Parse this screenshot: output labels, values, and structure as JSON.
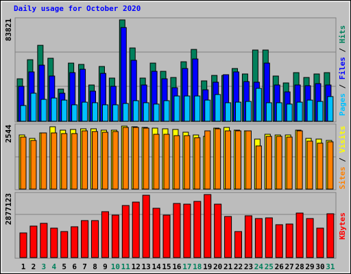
{
  "chart_data": [
    {
      "type": "bar",
      "title": "Daily usage for October 2020",
      "title_color": "#0000ff",
      "ylim": [
        0,
        83821
      ],
      "yticks": [
        83821
      ],
      "label_separator": " / ",
      "series": [
        {
          "name": "Hits",
          "color": "#00805c",
          "values": [
            35100,
            50900,
            62800,
            52100,
            26600,
            48100,
            47000,
            30000,
            45300,
            35700,
            83821,
            60600,
            35700,
            48100,
            41300,
            36200,
            49200,
            59400,
            33400,
            37900,
            37900,
            43600,
            39100,
            58900,
            58900,
            37400,
            31700,
            40200,
            36200,
            39100,
            40200
          ]
        },
        {
          "name": "Files",
          "color": "#0000ff",
          "values": [
            28900,
            40800,
            46400,
            37400,
            23200,
            40200,
            43000,
            24900,
            39600,
            28900,
            77500,
            50400,
            30000,
            41300,
            35100,
            27700,
            43600,
            51500,
            26000,
            32300,
            38500,
            40800,
            32800,
            32300,
            48100,
            30000,
            24300,
            30000,
            29400,
            31100,
            30000
          ]
        },
        {
          "name": "Pages",
          "color": "#00c0ff",
          "values": [
            13000,
            23200,
            18100,
            19200,
            17500,
            13600,
            15800,
            15300,
            13600,
            13600,
            14700,
            17000,
            15300,
            14200,
            17000,
            20900,
            20900,
            20900,
            17500,
            22100,
            15300,
            15800,
            16400,
            27200,
            15300,
            15300,
            14200,
            15800,
            17500,
            16400,
            20400
          ]
        }
      ]
    },
    {
      "type": "bar",
      "ylim": [
        0,
        2544
      ],
      "yticks": [
        2544
      ],
      "label_separator": " / ",
      "series": [
        {
          "name": "Visits",
          "color": "#ffff00",
          "values": [
            2184,
            2046,
            2267,
            2516,
            2378,
            2406,
            2433,
            2433,
            2378,
            2378,
            2544,
            2516,
            2489,
            2461,
            2433,
            2406,
            2295,
            2184,
            2129,
            2461,
            2489,
            2378,
            2350,
            2018,
            2212,
            2184,
            2184,
            2378,
            2046,
            2018,
            1963
          ]
        },
        {
          "name": "Sites",
          "color": "#ff8000",
          "values": [
            2101,
            1963,
            2267,
            2267,
            2240,
            2240,
            2350,
            2323,
            2295,
            2323,
            2489,
            2489,
            2461,
            2212,
            2212,
            2157,
            2157,
            2074,
            2350,
            2433,
            2350,
            2350,
            2350,
            1742,
            2129,
            2129,
            2101,
            2350,
            1936,
            1853,
            1908
          ]
        }
      ]
    },
    {
      "type": "bar",
      "ylim": [
        0,
        2877123
      ],
      "yticks": [
        2877123
      ],
      "categories": [
        "1",
        "2",
        "3",
        "4",
        "5",
        "6",
        "7",
        "8",
        "9",
        "10",
        "11",
        "12",
        "13",
        "14",
        "15",
        "16",
        "17",
        "18",
        "19",
        "20",
        "21",
        "22",
        "23",
        "24",
        "25",
        "26",
        "27",
        "28",
        "29",
        "30",
        "31"
      ],
      "category_colors": [
        "#000000",
        "#000000",
        "#00805c",
        "#00805c",
        "#000000",
        "#000000",
        "#000000",
        "#000000",
        "#000000",
        "#00805c",
        "#00805c",
        "#000000",
        "#000000",
        "#000000",
        "#000000",
        "#000000",
        "#00805c",
        "#00805c",
        "#000000",
        "#000000",
        "#000000",
        "#000000",
        "#000000",
        "#00805c",
        "#00805c",
        "#000000",
        "#000000",
        "#000000",
        "#000000",
        "#000000",
        "#00805c"
      ],
      "series": [
        {
          "name": "KBytes",
          "color": "#ff0000",
          "values": [
            1125800,
            1438600,
            1563700,
            1344700,
            1188400,
            1407300,
            1688700,
            1688700,
            2095300,
            1938900,
            2376700,
            2533100,
            2845800,
            2251700,
            1938900,
            2470600,
            2439300,
            2564400,
            2877123,
            2439300,
            1876400,
            1188400,
            1907700,
            1782600,
            1813800,
            1501100,
            1532400,
            2032700,
            1782600,
            1344700,
            2001500
          ]
        }
      ]
    }
  ]
}
